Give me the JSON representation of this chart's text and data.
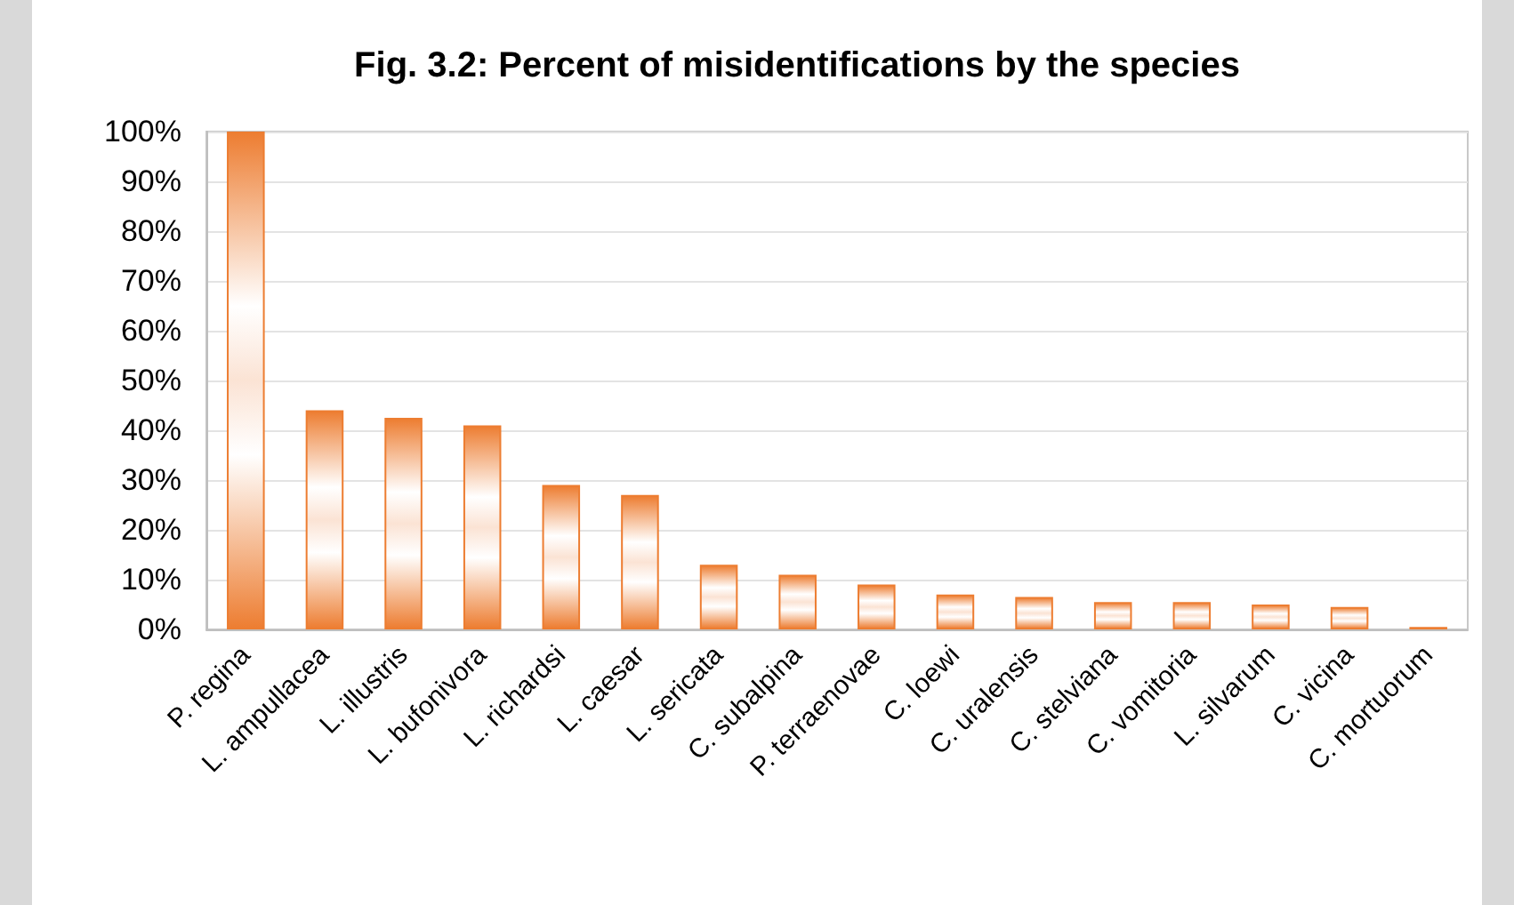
{
  "chart_data": {
    "type": "bar",
    "title": "Fig. 3.2: Percent of misidentifications by the species",
    "categories": [
      "P. regina",
      "L. ampullacea",
      "L. illustris",
      "L. bufonivora",
      "L. richardsi",
      "L. caesar",
      "L. sericata",
      "C. subalpina",
      "P. terraenovae",
      "C. loewi",
      "C. uralensis",
      "C. stelviana",
      "C. vomitoria",
      "L. silvarum",
      "C. vicina",
      "C. mortuorum"
    ],
    "values": [
      100,
      44,
      42.5,
      41,
      29,
      27,
      13,
      11,
      9,
      7,
      6.5,
      5.5,
      5.5,
      5,
      4.5,
      0.5
    ],
    "color": "#ed7d31",
    "ylim": [
      0,
      100
    ],
    "yticks": [
      {
        "value": 0,
        "label": "0%"
      },
      {
        "value": 10,
        "label": "10%"
      },
      {
        "value": 20,
        "label": "20%"
      },
      {
        "value": 30,
        "label": "30%"
      },
      {
        "value": 40,
        "label": "40%"
      },
      {
        "value": 50,
        "label": "50%"
      },
      {
        "value": 60,
        "label": "60%"
      },
      {
        "value": 70,
        "label": "70%"
      },
      {
        "value": 80,
        "label": "80%"
      },
      {
        "value": 90,
        "label": "90%"
      },
      {
        "value": 100,
        "label": "100%"
      }
    ],
    "grid": "y"
  }
}
